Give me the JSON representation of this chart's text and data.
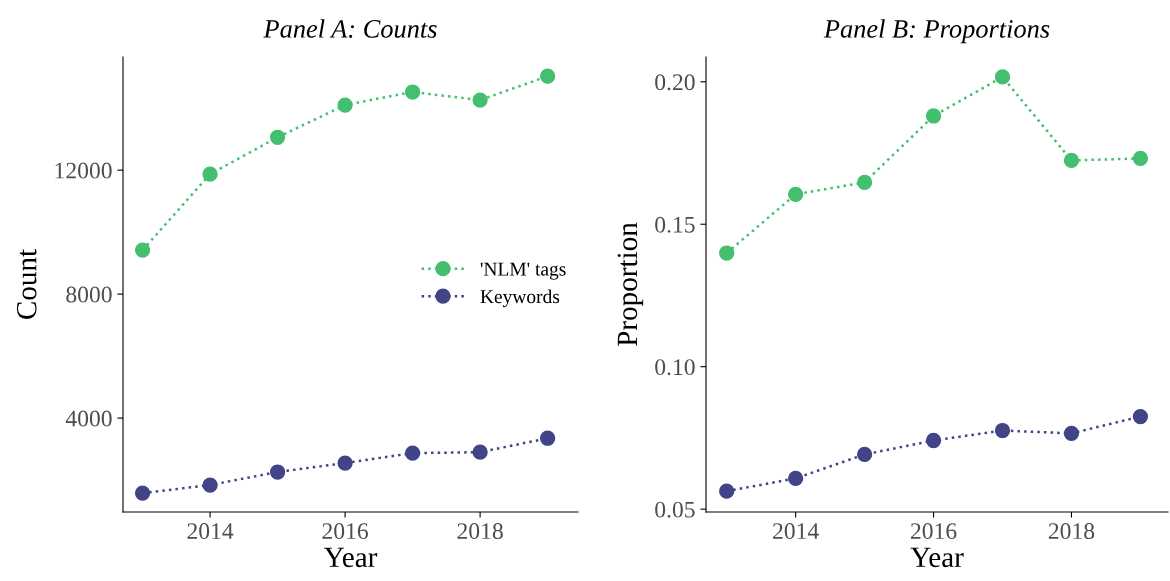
{
  "chart_data": [
    {
      "type": "line",
      "title": "Panel A: Counts",
      "xlabel": "Year",
      "ylabel": "Count",
      "x": [
        2013,
        2014,
        2015,
        2016,
        2017,
        2018,
        2019
      ],
      "xlim": [
        2012.71,
        2019.45
      ],
      "xticks": [
        2014,
        2016,
        2018
      ],
      "ylim": [
        970,
        15650
      ],
      "yticks": [
        4000,
        8000,
        12000
      ],
      "marker": "circle",
      "line_style": "dotted",
      "grid": false,
      "legend": "right",
      "series": [
        {
          "name": "'NLM' tags",
          "color": "#44bf70",
          "values": [
            9420,
            11870,
            13060,
            14100,
            14520,
            14260,
            15030
          ]
        },
        {
          "name": "Keywords",
          "color": "#414487",
          "values": [
            1580,
            1840,
            2260,
            2550,
            2870,
            2900,
            3350
          ]
        }
      ]
    },
    {
      "type": "line",
      "title": "Panel B: Proportions",
      "xlabel": "Year",
      "ylabel": "Proportion",
      "x": [
        2013,
        2014,
        2015,
        2016,
        2017,
        2018,
        2019
      ],
      "xlim": [
        2012.7,
        2019.4
      ],
      "xticks": [
        2014,
        2016,
        2018
      ],
      "ylim": [
        0.049,
        0.2087
      ],
      "yticks": [
        {
          "value": 0.05,
          "label": "0.05"
        },
        {
          "value": 0.1,
          "label": "0.10"
        },
        {
          "value": 0.15,
          "label": "0.15"
        },
        {
          "value": 0.2,
          "label": "0.20"
        }
      ],
      "marker": "circle",
      "line_style": "dotted",
      "grid": false,
      "series": [
        {
          "color": "#44bf70",
          "values": [
            0.1399,
            0.1605,
            0.1647,
            0.188,
            0.2017,
            0.1724,
            0.1731
          ]
        },
        {
          "color": "#414487",
          "values": [
            0.0563,
            0.0608,
            0.0692,
            0.0741,
            0.0776,
            0.0766,
            0.0825
          ]
        }
      ]
    }
  ]
}
